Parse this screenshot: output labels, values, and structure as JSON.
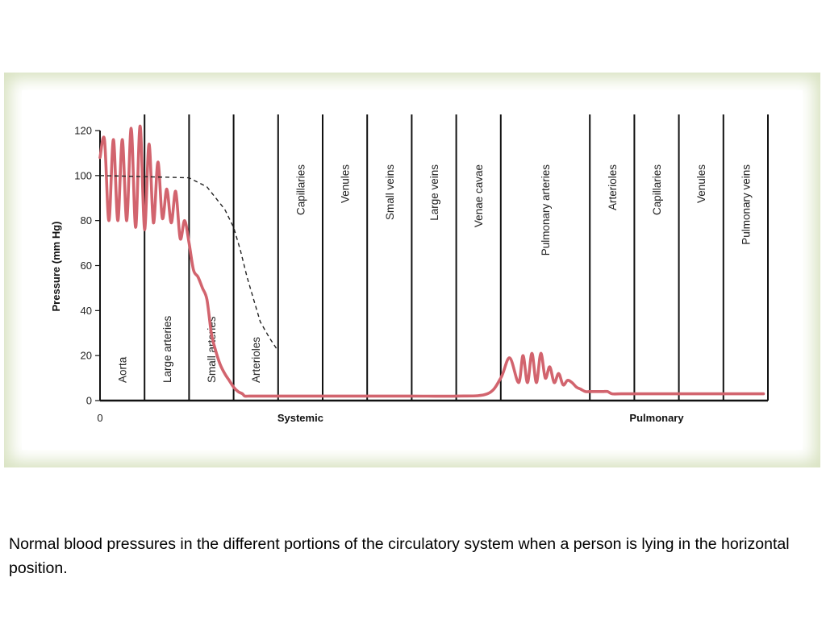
{
  "caption": "Normal blood pressures in the different portions of the circulatory system when a person is lying in the horizontal position.",
  "chart_data": {
    "type": "line",
    "title": "",
    "ylabel": "Pressure (mm Hg)",
    "ylim": [
      0,
      120
    ],
    "yticks": [
      0,
      20,
      40,
      60,
      80,
      100,
      120
    ],
    "xlim": [
      0,
      15
    ],
    "x_origin_label": "0",
    "grid": false,
    "circuits": [
      {
        "label": "Systemic",
        "center": 4.5
      },
      {
        "label": "Pulmonary",
        "center": 12.5
      }
    ],
    "regions": [
      {
        "label": "Aorta",
        "start": 0,
        "end": 1
      },
      {
        "label": "Large arteries",
        "start": 1,
        "end": 2
      },
      {
        "label": "Small arteries",
        "start": 2,
        "end": 3
      },
      {
        "label": "Arterioles",
        "start": 3,
        "end": 4
      },
      {
        "label": "Capillaries",
        "start": 4,
        "end": 5
      },
      {
        "label": "Venules",
        "start": 5,
        "end": 6
      },
      {
        "label": "Small veins",
        "start": 6,
        "end": 7
      },
      {
        "label": "Large veins",
        "start": 7,
        "end": 8
      },
      {
        "label": "Venae cavae",
        "start": 8,
        "end": 9
      },
      {
        "label": "Pulmonary arteries",
        "start": 9,
        "end": 11
      },
      {
        "label": "Arterioles",
        "start": 11,
        "end": 12
      },
      {
        "label": "Capillaries",
        "start": 12,
        "end": 13
      },
      {
        "label": "Venules",
        "start": 13,
        "end": 14
      },
      {
        "label": "Pulmonary veins",
        "start": 14,
        "end": 15
      }
    ],
    "series": [
      {
        "style": "pulsatile",
        "color": "#d2646e",
        "x": [
          0.0,
          0.1,
          0.2,
          0.3,
          0.4,
          0.5,
          0.6,
          0.7,
          0.8,
          0.9,
          1.0,
          1.1,
          1.2,
          1.3,
          1.4,
          1.5,
          1.6,
          1.7,
          1.8,
          1.9,
          2.0,
          2.1,
          2.2,
          2.3,
          2.4,
          2.5,
          2.6,
          2.7,
          2.8,
          2.9,
          3.0,
          3.1,
          3.2,
          3.25,
          3.35,
          3.45,
          3.6,
          3.8,
          4.0,
          4.3,
          4.6,
          5.0,
          5.5,
          6.0,
          7.0,
          8.0,
          8.7,
          9.0,
          9.2,
          9.4,
          9.5,
          9.6,
          9.7,
          9.8,
          9.9,
          10.0,
          10.1,
          10.2,
          10.3,
          10.4,
          10.5,
          10.6,
          10.7,
          10.8,
          10.9,
          11.0,
          11.1,
          11.2,
          11.3,
          11.4,
          11.5,
          11.7,
          12.0,
          12.5,
          13.0,
          14.0,
          14.9
        ],
        "y": [
          108,
          116,
          80,
          116,
          80,
          116,
          80,
          121,
          77,
          122,
          76,
          114,
          79,
          106,
          81,
          94,
          79,
          93,
          72,
          80,
          70,
          58,
          55,
          50,
          45,
          30,
          22,
          16,
          12,
          9,
          6,
          4,
          3,
          2,
          2,
          2,
          2,
          2,
          2,
          2,
          2,
          2,
          2,
          2,
          2,
          2,
          3,
          10,
          19,
          8,
          20,
          8,
          21,
          8,
          21,
          10,
          15,
          8,
          12,
          7,
          9,
          8,
          6,
          5,
          4,
          4,
          4,
          4,
          4,
          4,
          3,
          3,
          3,
          3,
          3,
          3,
          3
        ]
      },
      {
        "style": "dashed",
        "color": "#222222",
        "x": [
          0.0,
          2.0,
          2.4,
          2.8,
          3.0,
          3.15,
          3.3,
          3.45,
          3.6,
          3.8,
          4.0
        ],
        "y": [
          100,
          99,
          95,
          85,
          77,
          67,
          55,
          45,
          35,
          28,
          22
        ]
      }
    ]
  }
}
